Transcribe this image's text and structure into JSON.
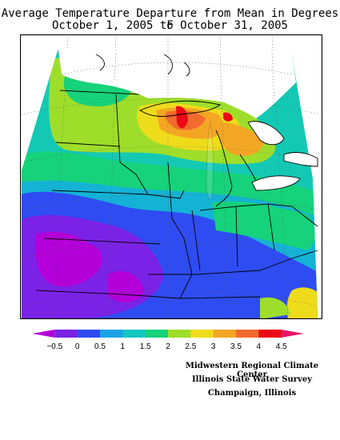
{
  "title": {
    "line1": "Average Temperature Departure from Mean in Degrees F",
    "line2": "October 1, 2005 to October 31, 2005"
  },
  "legend": {
    "labels": [
      "−0.5",
      "0",
      "0.5",
      "1",
      "1.5",
      "2",
      "2.5",
      "3",
      "3.5",
      "4",
      "4.5"
    ],
    "colors": [
      "#b400d8",
      "#7a22e6",
      "#2f4cf2",
      "#1aa3e8",
      "#12c6c0",
      "#16d27a",
      "#9ede2a",
      "#eedc1a",
      "#f3a623",
      "#f26a2e",
      "#ea0a16",
      "#e8146a"
    ]
  },
  "credits": {
    "line1": "Midwestern Regional Climate Center",
    "line2": "Illinois State Water Survey",
    "line3": "Champaign, Illinois"
  }
}
